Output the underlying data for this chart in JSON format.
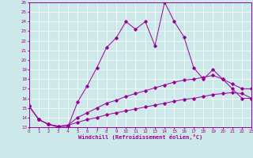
{
  "xlabel": "Windchill (Refroidissement éolien,°C)",
  "background_color": "#cce8e8",
  "line_color": "#990099",
  "grid_color": "#ffffff",
  "xmin": 0,
  "xmax": 23,
  "ymin": 13,
  "ymax": 26,
  "line1_x": [
    0,
    1,
    2,
    3,
    4,
    5,
    6,
    7,
    8,
    9,
    10,
    11,
    12,
    13,
    14,
    15,
    16,
    17,
    18,
    19,
    20,
    21,
    22,
    23
  ],
  "line1_y": [
    15.2,
    13.8,
    13.3,
    13.0,
    13.0,
    15.6,
    17.3,
    19.2,
    21.3,
    22.3,
    24.0,
    23.2,
    24.0,
    21.5,
    26.0,
    24.0,
    22.4,
    19.2,
    18.0,
    19.0,
    18.0,
    17.0,
    16.0,
    16.0
  ],
  "line2_x": [
    0,
    1,
    2,
    3,
    4,
    5,
    6,
    7,
    8,
    9,
    10,
    11,
    12,
    13,
    14,
    15,
    16,
    17,
    18,
    19,
    20,
    21,
    22,
    23
  ],
  "line2_y": [
    15.2,
    13.8,
    13.3,
    13.1,
    13.2,
    14.0,
    14.5,
    15.0,
    15.5,
    15.8,
    16.2,
    16.5,
    16.8,
    17.1,
    17.4,
    17.7,
    17.9,
    18.0,
    18.2,
    18.4,
    18.0,
    17.5,
    17.0,
    17.0
  ],
  "line3_x": [
    0,
    1,
    2,
    3,
    4,
    5,
    6,
    7,
    8,
    9,
    10,
    11,
    12,
    13,
    14,
    15,
    16,
    17,
    18,
    19,
    20,
    21,
    22,
    23
  ],
  "line3_y": [
    15.2,
    13.8,
    13.3,
    13.1,
    13.2,
    13.5,
    13.8,
    14.0,
    14.3,
    14.5,
    14.7,
    14.9,
    15.1,
    15.3,
    15.5,
    15.7,
    15.9,
    16.0,
    16.2,
    16.4,
    16.5,
    16.6,
    16.5,
    16.0
  ]
}
